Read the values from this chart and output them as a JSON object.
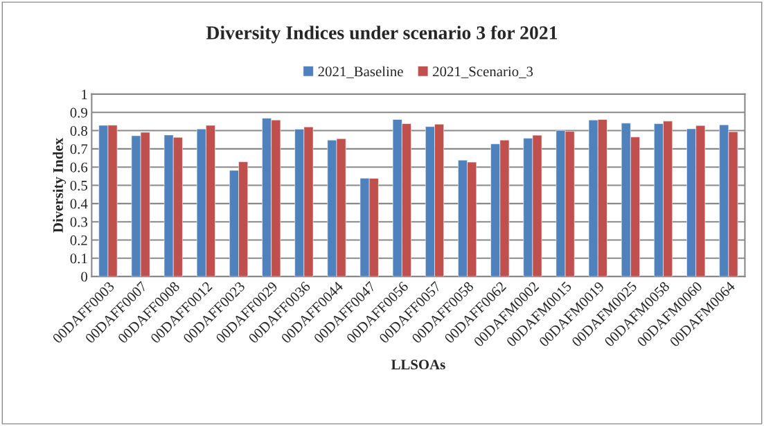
{
  "chart_data": {
    "type": "bar",
    "title": "Diversity Indices under scenario 3 for 2021",
    "xlabel": "LLSOAs",
    "ylabel": "Diversity Index",
    "categories": [
      "00DAFF0003",
      "00DAFF0007",
      "00DAFF0008",
      "00DAFF0012",
      "00DAFF0023",
      "00DAFF0029",
      "00DAFF0036",
      "00DAFF0044",
      "00DAFF0047",
      "00DAFF0056",
      "00DAFF0057",
      "00DAFF0058",
      "00DAFF0062",
      "00DAFM0002",
      "00DAFM0015",
      "00DAFM0019",
      "00DAFM0025",
      "00DAFM0058",
      "00DAFM0060",
      "00DAFM0064"
    ],
    "series": [
      {
        "name": "2021_Baseline",
        "color": "#4f81bd",
        "values": [
          0.829,
          0.772,
          0.776,
          0.809,
          0.582,
          0.868,
          0.808,
          0.748,
          0.539,
          0.861,
          0.822,
          0.638,
          0.727,
          0.758,
          0.801,
          0.858,
          0.841,
          0.838,
          0.81,
          0.832
        ]
      },
      {
        "name": "2021_Scenario_3",
        "color": "#c0504d",
        "values": [
          0.83,
          0.791,
          0.763,
          0.829,
          0.629,
          0.858,
          0.82,
          0.756,
          0.538,
          0.838,
          0.835,
          0.627,
          0.748,
          0.775,
          0.796,
          0.861,
          0.765,
          0.852,
          0.828,
          0.794
        ]
      }
    ],
    "ylim": [
      0,
      1
    ],
    "yticks": [
      0,
      {
        "value": 0.1,
        "label": "0.1"
      },
      {
        "value": 0.2,
        "label": "0.2"
      },
      {
        "value": 0.3,
        "label": "0.3"
      },
      {
        "value": 0.4,
        "label": "0.4"
      },
      {
        "value": 0.5,
        "label": "0.5"
      },
      {
        "value": 0.6,
        "label": "0.6"
      },
      {
        "value": 0.7,
        "label": "0.7"
      },
      {
        "value": 0.8,
        "label": "0.8"
      },
      {
        "value": 0.9,
        "label": "0.9"
      },
      1
    ],
    "grid": "y",
    "legend": "top"
  }
}
